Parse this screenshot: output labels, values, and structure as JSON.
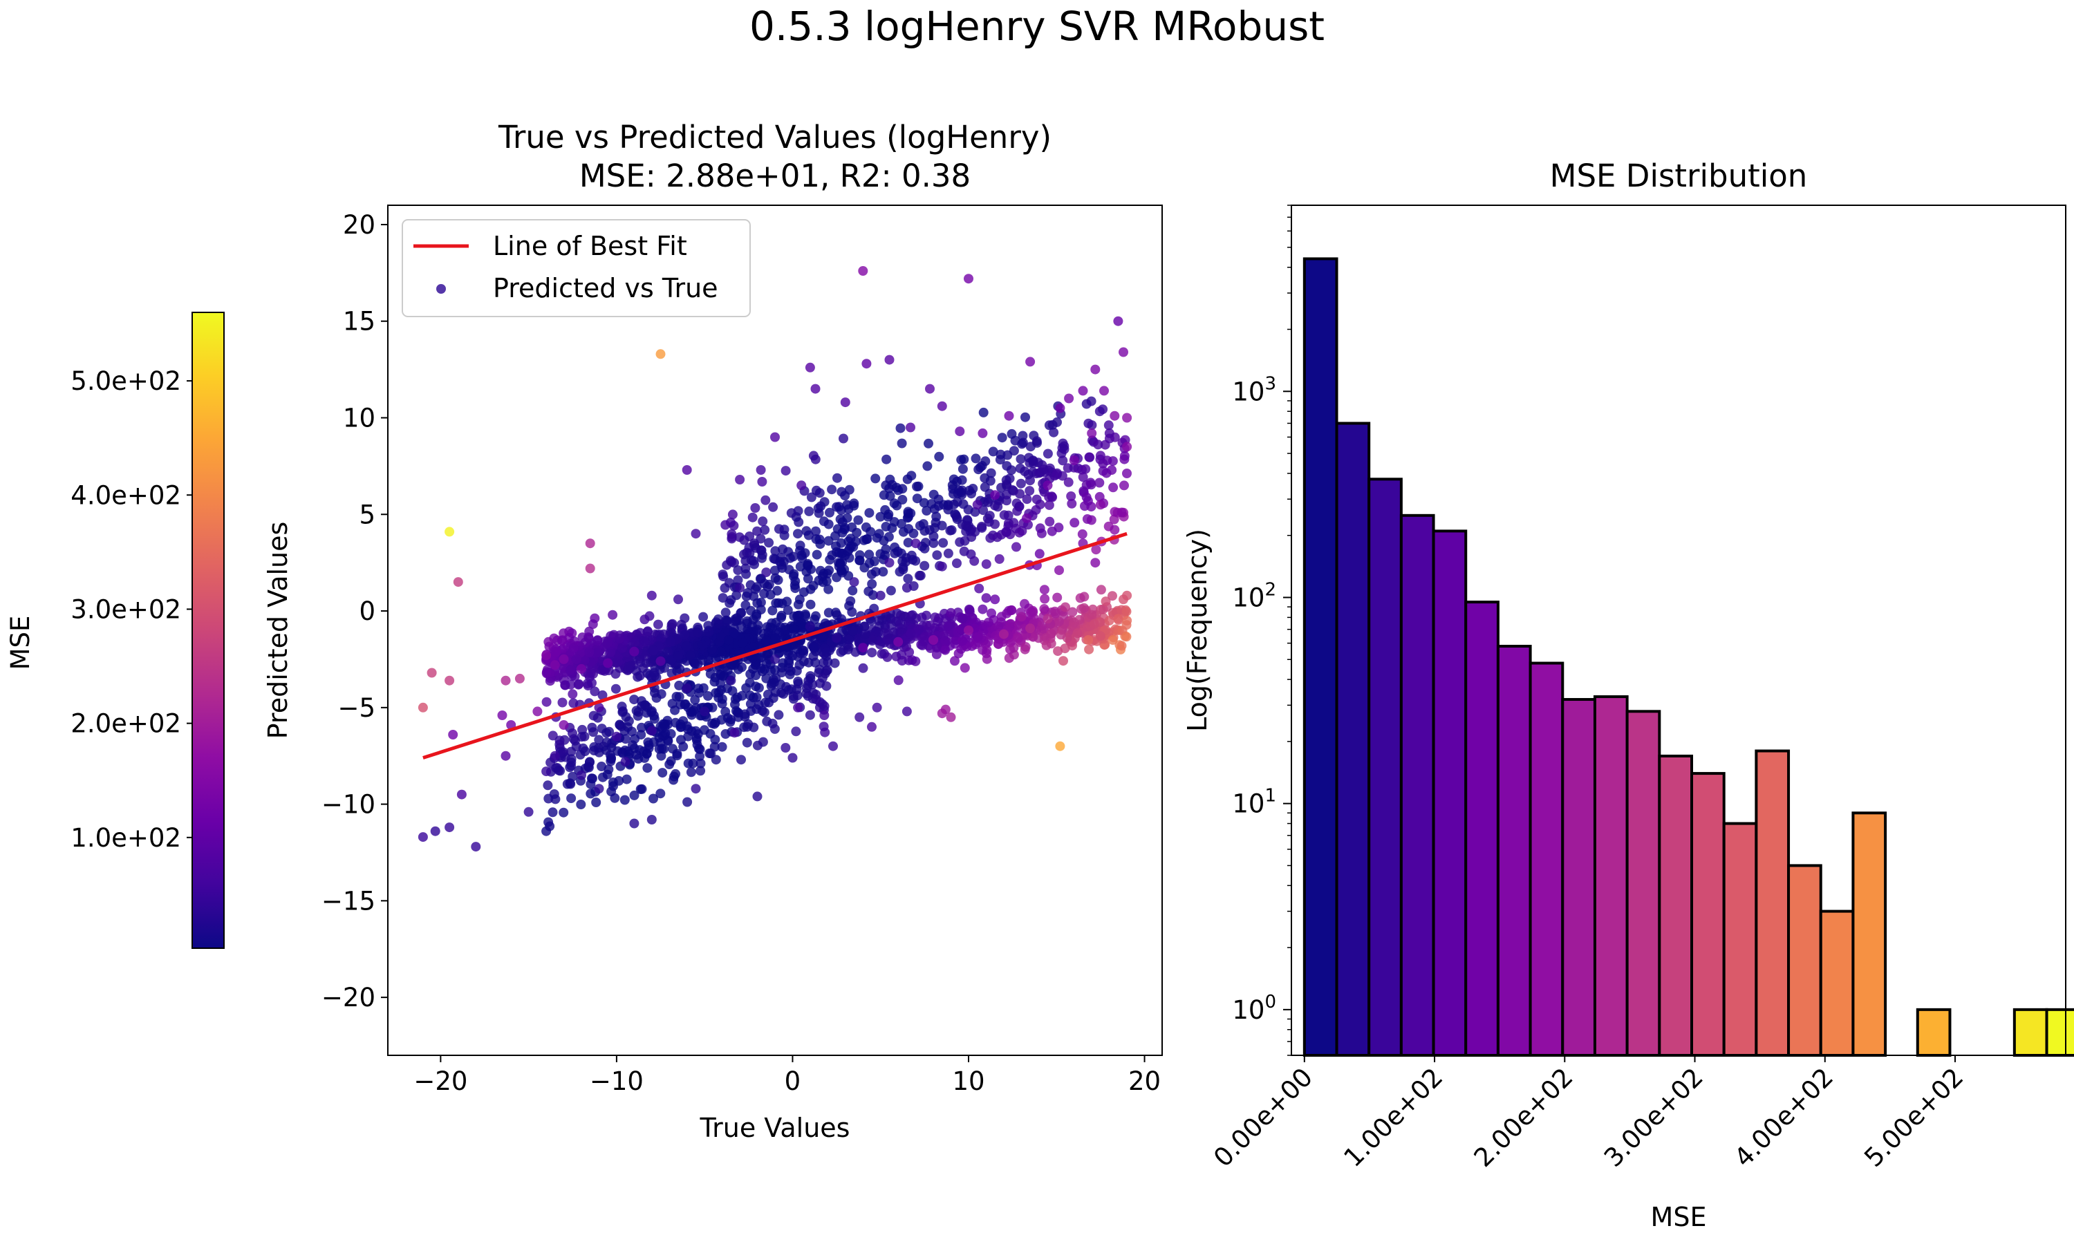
{
  "figure_title": "0.5.3 logHenry SVR MRobust",
  "colorbar": {
    "label": "MSE",
    "colormap": "plasma",
    "range": [
      3,
      560
    ],
    "ticks": [
      100,
      200,
      300,
      400,
      500
    ],
    "tick_labels": [
      "1.0e+02",
      "2.0e+02",
      "3.0e+02",
      "4.0e+02",
      "5.0e+02"
    ]
  },
  "chart_data": [
    {
      "type": "scatter",
      "title_line1": "True vs Predicted Values (logHenry)",
      "title_line2": "MSE: 2.88e+01, R2: 0.38",
      "xlabel": "True Values",
      "ylabel": "Predicted Values",
      "xlim": [
        -23,
        21
      ],
      "ylim": [
        -23,
        21
      ],
      "xticks": [
        -20,
        -10,
        0,
        10,
        20
      ],
      "xtick_labels": [
        "−20",
        "−10",
        "0",
        "10",
        "20"
      ],
      "yticks": [
        -20,
        -15,
        -10,
        -5,
        0,
        5,
        10,
        15,
        20
      ],
      "ytick_labels": [
        "−20",
        "−15",
        "−10",
        "−5",
        "0",
        "5",
        "10",
        "15",
        "20"
      ],
      "grid": false,
      "legend": {
        "position": "upper-left",
        "items": [
          "Line of Best Fit",
          "Predicted vs True"
        ]
      },
      "best_fit_line": {
        "color": "#e8141c",
        "points": [
          [
            -21,
            -7.6
          ],
          [
            19,
            4.0
          ]
        ]
      },
      "point_color_by": "MSE",
      "series_cloud_bands": [
        {
          "x_range": [
            -14,
            -2
          ],
          "y_center_at_start": -2.5,
          "y_center_at_end": -1.5,
          "y_spread": 1.0
        },
        {
          "x_range": [
            -2,
            19
          ],
          "y_center_at_start": -1.5,
          "y_center_at_end": -0.8,
          "y_spread": 1.0
        },
        {
          "x_range": [
            -14,
            2
          ],
          "y_center_at_start": -8.0,
          "y_center_at_end": -3.0,
          "y_spread": 2.5
        },
        {
          "x_range": [
            -4,
            19
          ],
          "y_center_at_start": 2.0,
          "y_center_at_end": 7.5,
          "y_spread": 3.0
        }
      ],
      "points": [
        [
          -19.5,
          4.1,
          550
        ],
        [
          -7.5,
          13.3,
          430
        ],
        [
          15.2,
          -7.0,
          450
        ],
        [
          4.0,
          17.6,
          150
        ],
        [
          10.0,
          17.2,
          130
        ],
        [
          18.5,
          15.0,
          110
        ],
        [
          18.8,
          13.4,
          140
        ],
        [
          -11.5,
          3.5,
          220
        ],
        [
          -11.5,
          2.2,
          230
        ],
        [
          -19.0,
          1.5,
          260
        ],
        [
          -20.5,
          -3.2,
          270
        ],
        [
          -21.0,
          -5.0,
          300
        ],
        [
          -19.5,
          -3.6,
          260
        ],
        [
          -21.0,
          -11.7,
          50
        ],
        [
          -20.3,
          -11.4,
          40
        ],
        [
          -19.5,
          -11.2,
          45
        ],
        [
          -18.0,
          -12.2,
          45
        ],
        [
          -19.3,
          -6.4,
          120
        ],
        [
          -18.8,
          -9.5,
          70
        ],
        [
          -16.3,
          -7.5,
          90
        ],
        [
          -16.5,
          -5.4,
          130
        ],
        [
          -16.0,
          -5.9,
          120
        ],
        [
          -15.5,
          -3.5,
          230
        ],
        [
          -16.3,
          -3.6,
          220
        ],
        [
          -14.5,
          -5.2,
          150
        ],
        [
          -15.0,
          -10.4,
          40
        ],
        [
          -13.0,
          -5.9,
          140
        ],
        [
          -5.5,
          -9.2,
          40
        ],
        [
          -9.0,
          -11.0,
          30
        ],
        [
          -8.0,
          -10.8,
          25
        ],
        [
          -3.3,
          -6.3,
          60
        ],
        [
          -2.0,
          -9.6,
          30
        ],
        [
          0.0,
          -7.6,
          40
        ],
        [
          2.3,
          -7.0,
          50
        ],
        [
          0.3,
          -5.0,
          70
        ],
        [
          1.8,
          -5.4,
          60
        ],
        [
          3.8,
          -5.5,
          50
        ],
        [
          4.8,
          -5.0,
          60
        ],
        [
          6.5,
          -5.2,
          60
        ],
        [
          8.7,
          -5.1,
          190
        ],
        [
          9.0,
          -5.5,
          200
        ],
        [
          8.5,
          -5.3,
          190
        ],
        [
          4.5,
          -6.0,
          70
        ],
        [
          -6.0,
          7.3,
          80
        ],
        [
          -5.5,
          4.0,
          60
        ],
        [
          -3.0,
          6.8,
          70
        ],
        [
          -1.8,
          7.3,
          60
        ],
        [
          -1.0,
          9.0,
          80
        ],
        [
          0.5,
          6.5,
          70
        ],
        [
          1.0,
          12.6,
          90
        ],
        [
          1.3,
          11.5,
          80
        ],
        [
          3.0,
          10.8,
          80
        ],
        [
          4.2,
          12.8,
          100
        ],
        [
          5.5,
          13.0,
          90
        ],
        [
          6.7,
          9.5,
          80
        ],
        [
          7.8,
          11.5,
          90
        ],
        [
          8.5,
          10.6,
          90
        ],
        [
          9.5,
          9.3,
          100
        ],
        [
          10.8,
          9.2,
          110
        ],
        [
          12.3,
          10.1,
          120
        ],
        [
          13.5,
          12.9,
          130
        ],
        [
          15.2,
          10.5,
          120
        ],
        [
          15.7,
          11.0,
          130
        ],
        [
          16.5,
          11.4,
          130
        ],
        [
          17.2,
          12.5,
          140
        ],
        [
          17.7,
          11.4,
          140
        ],
        [
          18.3,
          10.1,
          150
        ],
        [
          19.0,
          10.0,
          160
        ],
        [
          19.0,
          8.5,
          160
        ],
        [
          18.7,
          5.1,
          150
        ],
        [
          17.5,
          5.5,
          150
        ],
        [
          16.5,
          3.5,
          140
        ],
        [
          18.3,
          4.2,
          160
        ],
        [
          17.2,
          2.5,
          150
        ],
        [
          14.5,
          6.5,
          120
        ],
        [
          13.3,
          4.8,
          120
        ],
        [
          11.5,
          6.0,
          110
        ],
        [
          16.0,
          7.8,
          130
        ],
        [
          17.0,
          9.2,
          140
        ],
        [
          -1.5,
          2.0,
          40
        ],
        [
          -3.0,
          1.2,
          40
        ],
        [
          -6.5,
          0.6,
          50
        ],
        [
          -8.0,
          0.8,
          60
        ],
        [
          3.5,
          1.5,
          40
        ],
        [
          5.5,
          2.5,
          50
        ],
        [
          7.0,
          3.5,
          60
        ],
        [
          10.5,
          5.5,
          70
        ],
        [
          14.5,
          -0.4,
          230
        ],
        [
          15.5,
          0.2,
          240
        ],
        [
          16.0,
          -0.6,
          250
        ],
        [
          17.0,
          -0.2,
          260
        ],
        [
          17.5,
          -1.3,
          300
        ],
        [
          18.0,
          -0.5,
          320
        ],
        [
          18.5,
          -0.4,
          330
        ],
        [
          18.7,
          -1.8,
          360
        ],
        [
          18.8,
          0.6,
          300
        ],
        [
          19.0,
          -0.5,
          350
        ],
        [
          18.2,
          -1.5,
          370
        ],
        [
          16.8,
          -1.5,
          340
        ],
        [
          17.8,
          0.5,
          290
        ],
        [
          19.0,
          0.8,
          300
        ],
        [
          12.0,
          -1.2,
          210
        ],
        [
          13.5,
          -0.9,
          220
        ],
        [
          10.0,
          -1.0,
          180
        ],
        [
          8.0,
          -1.5,
          160
        ],
        [
          6.0,
          -1.6,
          140
        ],
        [
          4.0,
          -1.9,
          110
        ],
        [
          -12.0,
          -3.0,
          130
        ],
        [
          -13.0,
          -2.5,
          140
        ],
        [
          -14.0,
          -2.3,
          150
        ],
        [
          -13.5,
          -2.8,
          140
        ],
        [
          -10.5,
          -2.7,
          110
        ],
        [
          -9.0,
          -2.1,
          100
        ],
        [
          -7.5,
          -2.6,
          90
        ],
        [
          -12.5,
          -4.3,
          80
        ],
        [
          -11.0,
          -5.0,
          70
        ],
        [
          -10.0,
          -6.5,
          50
        ],
        [
          -9.5,
          -7.8,
          40
        ],
        [
          -8.0,
          -6.2,
          45
        ],
        [
          -12.0,
          -8.5,
          40
        ],
        [
          -11.0,
          -9.2,
          35
        ],
        [
          -13.5,
          -7.5,
          50
        ],
        [
          -14.0,
          -8.3,
          45
        ],
        [
          -6.0,
          -4.0,
          35
        ],
        [
          -5.0,
          -5.2,
          30
        ],
        [
          -3.5,
          -3.6,
          30
        ],
        [
          -1.0,
          -2.5,
          30
        ],
        [
          1.0,
          -0.8,
          25
        ],
        [
          2.5,
          -1.4,
          30
        ],
        [
          5.0,
          0.8,
          40
        ],
        [
          6.5,
          1.2,
          40
        ],
        [
          8.5,
          2.3,
          50
        ],
        [
          9.0,
          -0.1,
          90
        ],
        [
          11.5,
          0.6,
          110
        ],
        [
          13.0,
          -0.3,
          190
        ]
      ]
    },
    {
      "type": "bar",
      "title": "MSE Distribution",
      "xlabel": "MSE",
      "ylabel": "Log(Frequency)",
      "y_scale": "log",
      "xlim": [
        -10,
        585
      ],
      "ylim": [
        0.6,
        8000
      ],
      "xticks": [
        0,
        100,
        200,
        300,
        400,
        500
      ],
      "xtick_labels": [
        "0.00e+00",
        "1.00e+02",
        "2.00e+02",
        "3.00e+02",
        "4.00e+02",
        "5.00e+02"
      ],
      "yticks": [
        1,
        10,
        100,
        1000
      ],
      "ytick_labels": [
        "10^0",
        "10^1",
        "10^2",
        "10^3"
      ],
      "bin_width": 24.8,
      "bin_start": 0,
      "values": [
        4400,
        700,
        375,
        250,
        210,
        95,
        58,
        48,
        32,
        33,
        28,
        17,
        14,
        8,
        18,
        5,
        3,
        9,
        0,
        1,
        0,
        0,
        1,
        1
      ],
      "colormap": "plasma",
      "edge_color": "#000000"
    }
  ]
}
